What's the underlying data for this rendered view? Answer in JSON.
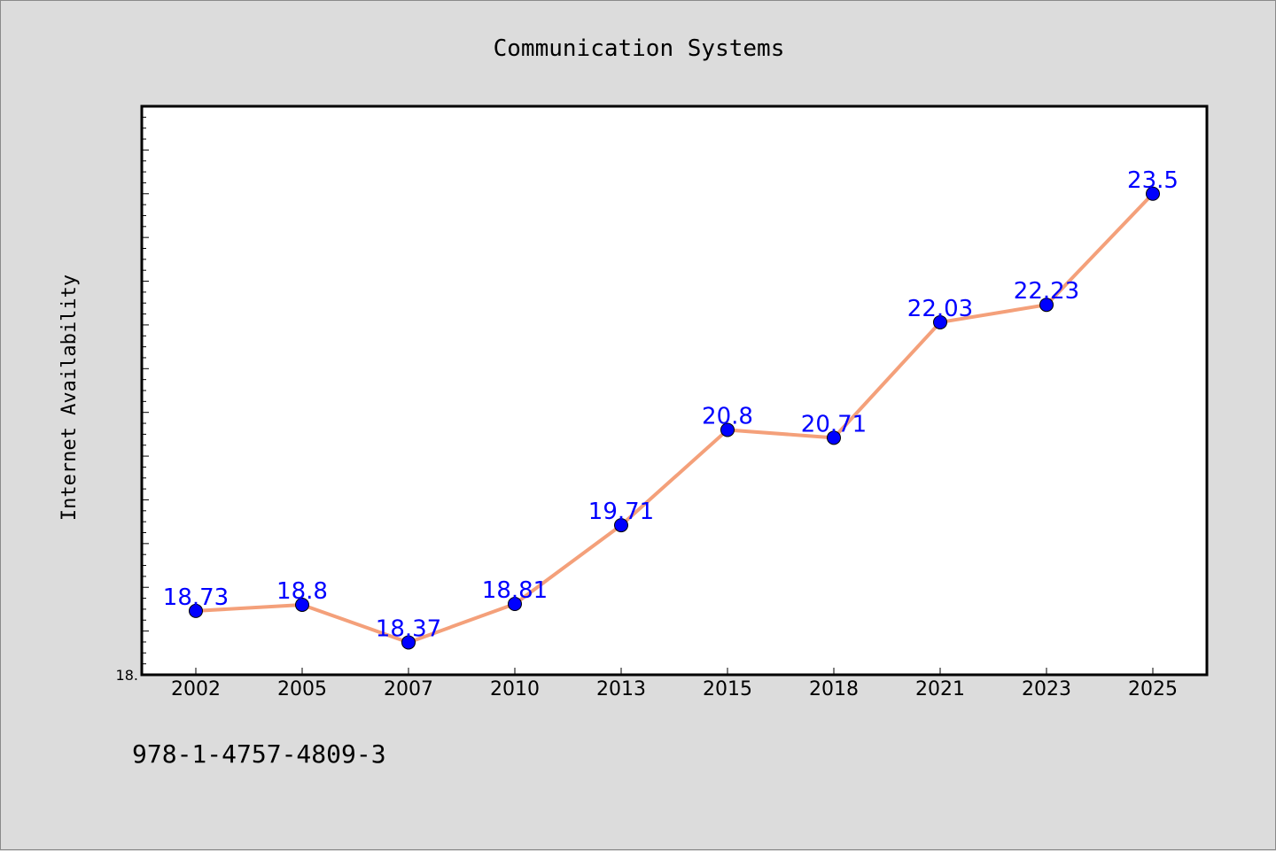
{
  "footnote": "978-1-4757-4809-3",
  "chart_data": {
    "type": "line",
    "title": "Communication Systems",
    "xlabel": "",
    "ylabel": "Internet Availability",
    "categories": [
      "2002",
      "2005",
      "2007",
      "2010",
      "2013",
      "2015",
      "2018",
      "2021",
      "2023",
      "2025"
    ],
    "series": [
      {
        "values": [
          18.73,
          18.8,
          18.37,
          18.81,
          19.71,
          20.8,
          20.71,
          22.03,
          22.23,
          23.5
        ],
        "data_labels": [
          "18.73",
          "18.8",
          "18.37",
          "18.81",
          "19.71",
          "20.8",
          "20.71",
          "22.03",
          "22.23",
          "23.5"
        ]
      }
    ],
    "ylim": [
      18.0,
      24.5
    ],
    "y_tick_labels": [
      {
        "value": 18.0,
        "label": "18."
      }
    ],
    "line_color": "#f4a07a",
    "marker_color": "#0000ff",
    "label_color": "#0000ff",
    "grid": false,
    "legend": "none"
  }
}
